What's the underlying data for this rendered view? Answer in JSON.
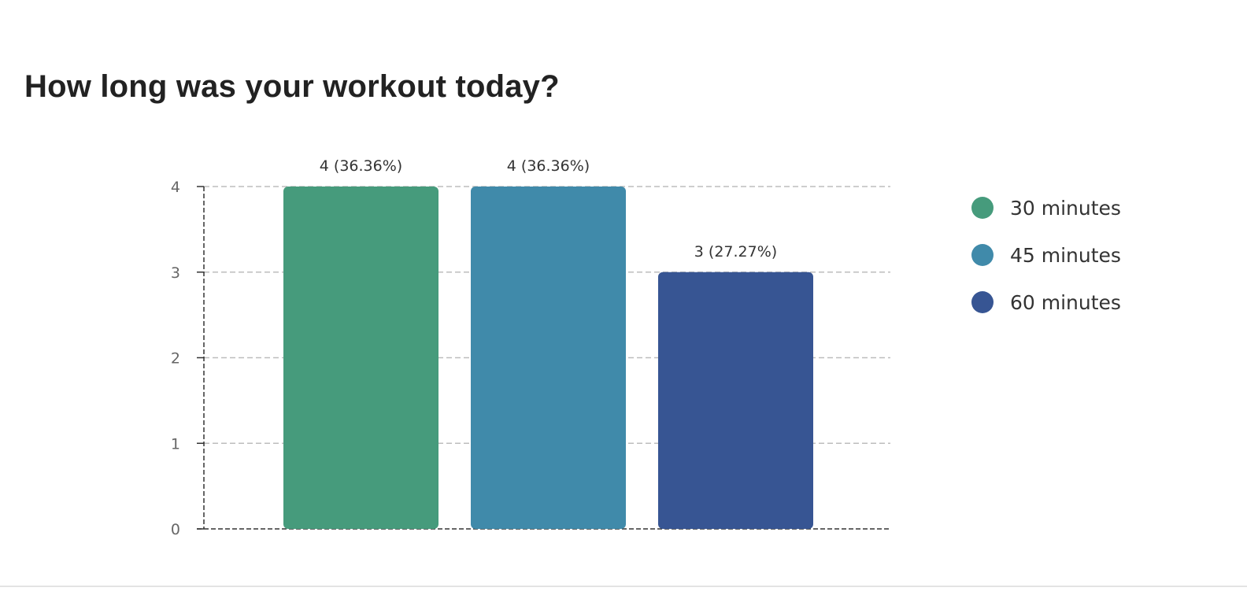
{
  "question": {
    "title": "How long was your workout today?"
  },
  "chart_data": {
    "type": "bar",
    "title": "How long was your workout today?",
    "categories": [
      "30 minutes",
      "45 minutes",
      "60 minutes"
    ],
    "values": [
      4,
      4,
      3
    ],
    "data_labels": [
      "4 (36.36%)",
      "4 (36.36%)",
      "3 (27.27%)"
    ],
    "colors": [
      "#469b7c",
      "#408aaa",
      "#375593"
    ],
    "y_ticks": [
      "0",
      "1",
      "2",
      "3",
      "4"
    ],
    "ylim": [
      0,
      4
    ],
    "xlabel": "",
    "ylabel": "",
    "grid": true,
    "legend_position": "right",
    "legend": [
      {
        "label": "30 minutes",
        "color": "#469b7c"
      },
      {
        "label": "45 minutes",
        "color": "#408aaa"
      },
      {
        "label": "60 minutes",
        "color": "#375593"
      }
    ]
  }
}
